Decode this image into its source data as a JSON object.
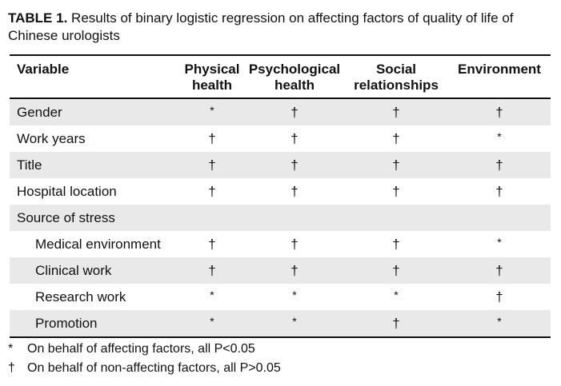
{
  "caption": {
    "lead": "TABLE 1.",
    "text": " Results of binary logistic regression on affecting factors of quality of life of Chinese urologists"
  },
  "table": {
    "headers": [
      "Variable",
      "Physical health",
      "Psychological health",
      "Social relationships",
      "Environment"
    ],
    "rows": [
      {
        "label": "Gender",
        "indent": false,
        "cells": [
          "*",
          "†",
          "†",
          "†"
        ]
      },
      {
        "label": "Work years",
        "indent": false,
        "cells": [
          "†",
          "†",
          "†",
          "*"
        ]
      },
      {
        "label": "Title",
        "indent": false,
        "cells": [
          "†",
          "†",
          "†",
          "†"
        ]
      },
      {
        "label": "Hospital location",
        "indent": false,
        "cells": [
          "†",
          "†",
          "†",
          "†"
        ]
      },
      {
        "label": "Source of stress",
        "indent": false,
        "cells": [
          "",
          "",
          "",
          ""
        ]
      },
      {
        "label": "Medical environment",
        "indent": true,
        "cells": [
          "†",
          "†",
          "†",
          "*"
        ]
      },
      {
        "label": "Clinical work",
        "indent": true,
        "cells": [
          "†",
          "†",
          "†",
          "†"
        ]
      },
      {
        "label": "Research work",
        "indent": true,
        "cells": [
          "*",
          "*",
          "*",
          "†"
        ]
      },
      {
        "label": "Promotion",
        "indent": true,
        "cells": [
          "*",
          "*",
          "†",
          "*"
        ]
      }
    ]
  },
  "footnotes": [
    {
      "marker": "*",
      "text": "On behalf of affecting factors, all P<0.05"
    },
    {
      "marker": "†",
      "text": "On behalf of non-affecting factors, all P>0.05"
    }
  ]
}
